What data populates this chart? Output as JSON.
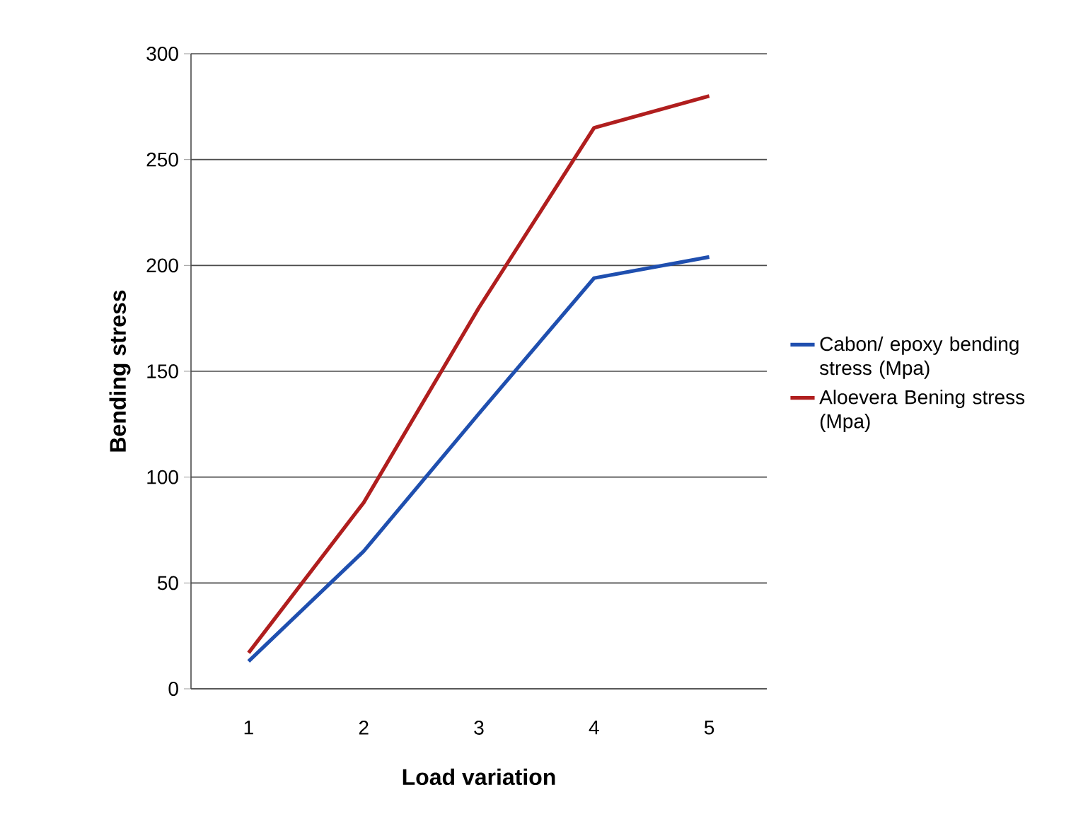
{
  "chart_data": {
    "type": "line",
    "xlabel": "Load variation",
    "ylabel": "Bending stress",
    "categories": [
      "1",
      "2",
      "3",
      "4",
      "5"
    ],
    "series": [
      {
        "name": "Cabon/ epoxy bending stress (Mpa)",
        "color": "#1f4faf",
        "values": [
          13,
          65,
          130,
          194,
          204
        ]
      },
      {
        "name": "Aloevera Bening stress (Mpa)",
        "color": "#b01e1e",
        "values": [
          17,
          88,
          180,
          265,
          280
        ]
      }
    ],
    "ylim": [
      0,
      300
    ],
    "yticks": [
      0,
      50,
      100,
      150,
      200,
      250,
      300
    ],
    "grid": "y",
    "legend": "right",
    "marker": "none",
    "line_style": "solid"
  }
}
